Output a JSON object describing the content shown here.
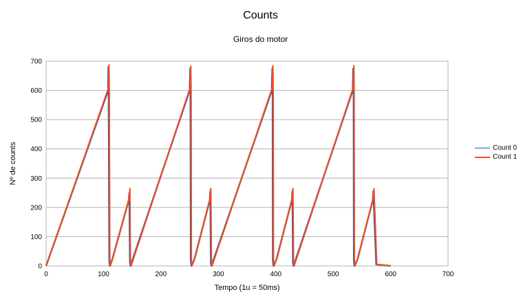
{
  "chart_data": {
    "type": "line",
    "title": "Counts",
    "subtitle": "Giros do motor",
    "xlabel": "Tempo (1u = 50ms)",
    "ylabel": "Nº de counts",
    "xlim": [
      0,
      700
    ],
    "ylim": [
      0,
      700
    ],
    "xticks": [
      0,
      100,
      200,
      300,
      400,
      500,
      600,
      700
    ],
    "yticks": [
      0,
      100,
      200,
      300,
      400,
      500,
      600,
      700
    ],
    "grid": "horizontal",
    "legend_position": "right",
    "series": [
      {
        "name": "Count 0",
        "color": "#1f5fa8",
        "x": [
          0,
          108,
          108.5,
          109,
          110,
          111,
          115,
          144,
          145,
          146,
          147,
          250,
          251,
          251.5,
          252,
          253,
          258,
          285,
          286,
          287,
          288,
          393,
          394,
          394.5,
          395,
          396,
          401,
          428,
          429,
          430,
          431,
          534,
          535,
          535.5,
          536,
          537,
          542,
          569,
          570,
          575,
          600
        ],
        "y": [
          0,
          600,
          680,
          600,
          20,
          0,
          20,
          225,
          250,
          10,
          0,
          600,
          675,
          600,
          20,
          0,
          20,
          225,
          255,
          10,
          0,
          600,
          675,
          600,
          20,
          0,
          20,
          225,
          255,
          10,
          0,
          600,
          675,
          600,
          20,
          0,
          20,
          225,
          255,
          5,
          0
        ]
      },
      {
        "name": "Count 1",
        "color": "#ff4a1c",
        "x": [
          0,
          109,
          109.5,
          110,
          111,
          112,
          116,
          145,
          146,
          147,
          148,
          251,
          252,
          252.5,
          253,
          254,
          259,
          286,
          287,
          288,
          289,
          394,
          395,
          395.5,
          396,
          397,
          402,
          429,
          430,
          431,
          432,
          535,
          536,
          536.5,
          537,
          538,
          543,
          570,
          571,
          576,
          600
        ],
        "y": [
          0,
          610,
          688,
          610,
          25,
          0,
          25,
          235,
          265,
          10,
          0,
          610,
          683,
          610,
          25,
          0,
          25,
          235,
          265,
          10,
          0,
          610,
          685,
          610,
          25,
          0,
          25,
          235,
          265,
          10,
          0,
          610,
          685,
          610,
          25,
          0,
          25,
          235,
          265,
          5,
          0
        ]
      }
    ]
  }
}
